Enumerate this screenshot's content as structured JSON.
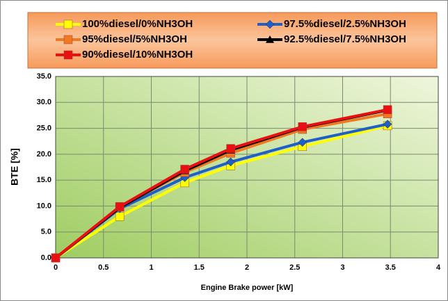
{
  "chart_data": {
    "type": "line",
    "xlabel": "Engine Brake power [kW]",
    "ylabel": "BTE [%]",
    "x": [
      0,
      0.67,
      1.35,
      1.83,
      2.58,
      3.47
    ],
    "series": [
      {
        "name": "100%diesel/0%NH3OH",
        "color": "#ffff00",
        "marker": "square",
        "values": [
          0,
          8,
          14.5,
          17.8,
          21.5,
          25.5
        ]
      },
      {
        "name": "97.5%diesel/2.5%NH3OH",
        "color": "#1f5fc8",
        "marker": "diamond",
        "values": [
          0,
          9.5,
          15.5,
          18.5,
          22.3,
          25.8
        ]
      },
      {
        "name": "95%diesel/5%NH3OH",
        "color": "#f07820",
        "marker": "square",
        "values": [
          0,
          9.8,
          16.5,
          20.2,
          24.8,
          27.8
        ]
      },
      {
        "name": "92.5%diesel/7.5%NH3OH",
        "color": "#000000",
        "marker": "triangle",
        "values": [
          0,
          9.7,
          16.8,
          20.8,
          25.2,
          28.5
        ]
      },
      {
        "name": "90%diesel/10%NH3OH",
        "color": "#e81010",
        "marker": "square",
        "values": [
          0,
          9.9,
          17.1,
          21.1,
          25.3,
          28.6
        ]
      }
    ],
    "xlim": [
      0,
      4
    ],
    "xticks": [
      0,
      0.5,
      1,
      1.5,
      2,
      2.5,
      3,
      3.5,
      4
    ],
    "ylim": [
      0,
      35
    ],
    "yticks": [
      {
        "value": 0,
        "label": "0.0"
      },
      {
        "value": 5,
        "label": "5.0"
      },
      {
        "value": 10,
        "label": "10.0"
      },
      {
        "value": 15,
        "label": "15.0"
      },
      {
        "value": 20,
        "label": "20.0"
      },
      {
        "value": 25,
        "label": "25.0"
      },
      {
        "value": 30,
        "label": "30.0"
      },
      {
        "value": 35,
        "label": "35.0"
      }
    ],
    "grid": true,
    "legend": "top"
  }
}
